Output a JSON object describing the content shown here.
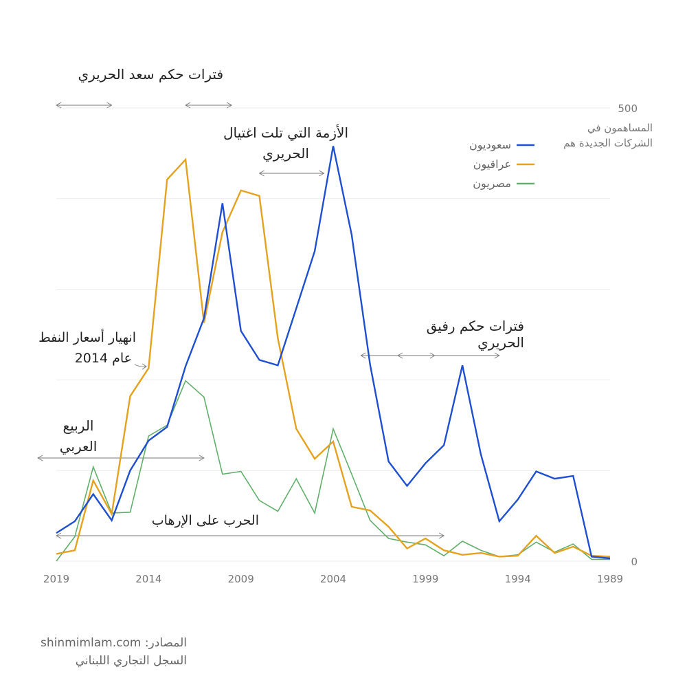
{
  "chart_data": {
    "type": "line",
    "x": [
      2019,
      2018,
      2017,
      2016,
      2015,
      2014,
      2013,
      2012,
      2011,
      2010,
      2009,
      2008,
      2007,
      2006,
      2005,
      2004,
      2003,
      2002,
      2001,
      2000,
      1999,
      1998,
      1997,
      1996,
      1995,
      1994,
      1993,
      1992,
      1991,
      1990,
      1989
    ],
    "series": [
      {
        "name": "سعوديون",
        "color": "#1f4fd1",
        "values": [
          31,
          44,
          74,
          45,
          100,
          133,
          148,
          215,
          268,
          395,
          254,
          222,
          216,
          279,
          342,
          458,
          360,
          217,
          110,
          83,
          108,
          128,
          216,
          118,
          44,
          68,
          99,
          91,
          94,
          5,
          3
        ]
      },
      {
        "name": "عراقيون",
        "color": "#e4a21f",
        "values": [
          8,
          12,
          89,
          52,
          182,
          213,
          421,
          443,
          263,
          363,
          409,
          403,
          246,
          146,
          113,
          132,
          60,
          56,
          38,
          14,
          25,
          12,
          7,
          9,
          5,
          6,
          28,
          9,
          16,
          6,
          5
        ]
      },
      {
        "name": "مصريون",
        "color": "#62ae6b",
        "values": [
          0,
          27,
          104,
          53,
          54,
          138,
          150,
          199,
          181,
          96,
          99,
          67,
          55,
          91,
          53,
          146,
          96,
          45,
          25,
          21,
          18,
          6,
          22,
          12,
          5,
          7,
          21,
          10,
          19,
          2,
          2
        ]
      }
    ],
    "y_ticks": [
      "500",
      "0"
    ],
    "x_ticks": [
      "2019",
      "2014",
      "2009",
      "2004",
      "1999",
      "1994",
      "1989"
    ],
    "ylim": [
      0,
      500
    ],
    "xlim": [
      2019,
      1989
    ],
    "x_reversed": true,
    "grid": true,
    "legend_position": "top-right",
    "ylabel": "المساهمون في الشركات الجديدة هم",
    "annotations": [
      {
        "label": "فترات حكم سعد الحريري",
        "ranges": [
          [
            2019,
            2016
          ],
          [
            2012,
            2009.5
          ]
        ]
      },
      {
        "label": "الأزمة التي تلت اغتيال الحريري",
        "ranges": [
          [
            2008,
            2004.5
          ]
        ]
      },
      {
        "label": "انهيار أسعار النفط عام  2014",
        "ranges": []
      },
      {
        "label": "فترات حكم رفيق الحريري",
        "ranges": [
          [
            2002.5,
            1998.5
          ],
          [
            2000.5,
            1995
          ]
        ]
      },
      {
        "label": "الربيع العربي",
        "ranges": [
          [
            2020,
            2011
          ]
        ]
      },
      {
        "label": "الحرب على الإرهاب",
        "ranges": [
          [
            2019,
            1998
          ]
        ]
      }
    ]
  },
  "labels": {
    "ylabel_line1": "المساهمون في",
    "ylabel_line2": "الشركات الجديدة هم",
    "ann_saad": "فترات حكم سعد الحريري",
    "ann_crisis_l1": "الأزمة التي تلت اغتيال",
    "ann_crisis_l2": "الحريري",
    "ann_oil_l1": "انهيار أسعار النفط",
    "ann_oil_l2": "عام  2014",
    "ann_rafiq": "فترات حكم رفيق الحريري",
    "ann_spring_l1": "الربيع",
    "ann_spring_l2": "العربي",
    "ann_war": "الحرب على الإرهاب",
    "source_l1": "المصادر: shinmimlam.com",
    "source_l2": "السجل التجاري اللبناني"
  }
}
